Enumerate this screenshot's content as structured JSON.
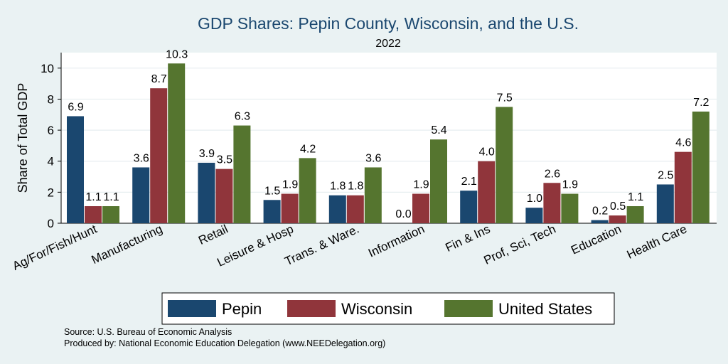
{
  "chart_data": {
    "type": "bar",
    "title": "GDP Shares: Pepin County, Wisconsin, and the U.S.",
    "subtitle": "2022",
    "ylabel": "Share of Total GDP",
    "xlabel": "",
    "ylim": [
      0,
      11
    ],
    "yticks": [
      0,
      2,
      4,
      6,
      8,
      10
    ],
    "grid": true,
    "legend_position": "bottom",
    "categories": [
      "Ag/For/Fish/Hunt",
      "Manufacturing",
      "Retail",
      "Leisure & Hosp",
      "Trans. & Ware.",
      "Information",
      "Fin & Ins",
      "Prof, Sci, Tech",
      "Education",
      "Health Care"
    ],
    "series": [
      {
        "name": "Pepin",
        "color": "#1a476f",
        "values": [
          6.9,
          3.6,
          3.9,
          1.5,
          1.8,
          0.0,
          2.1,
          1.0,
          0.2,
          2.5
        ],
        "labels": [
          "6.9",
          "3.6",
          "3.9",
          "1.5",
          "1.8",
          "0.0",
          "2.1",
          "1.0",
          "0.2",
          "2.5"
        ]
      },
      {
        "name": "Wisconsin",
        "color": "#90353b",
        "values": [
          1.1,
          8.7,
          3.5,
          1.9,
          1.8,
          1.9,
          4.0,
          2.6,
          0.5,
          4.6
        ],
        "labels": [
          "1.1",
          "8.7",
          "3.5",
          "1.9",
          "1.8",
          "1.9",
          "4.0",
          "2.6",
          "0.5",
          "4.6"
        ]
      },
      {
        "name": "United States",
        "color": "#55752f",
        "values": [
          1.1,
          10.3,
          6.3,
          4.2,
          3.6,
          5.4,
          7.5,
          1.9,
          1.1,
          7.2
        ],
        "labels": [
          "1.1",
          "10.3",
          "6.3",
          "4.2",
          "3.6",
          "5.4",
          "7.5",
          "1.9",
          "1.1",
          "7.2"
        ]
      }
    ],
    "notes": [
      "Source: U.S. Bureau of Economic Analysis",
      "Produced by: National Economic Education Delegation (www.NEEDelegation.org)"
    ]
  }
}
